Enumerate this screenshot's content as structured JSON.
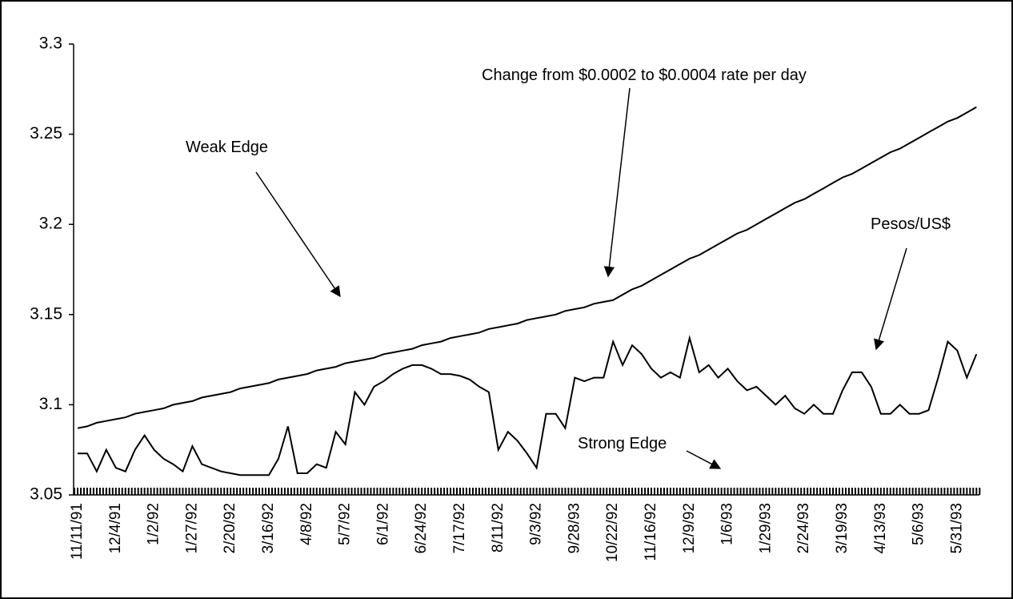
{
  "chart_data": {
    "type": "line",
    "categories": [
      "11/11/91",
      null,
      null,
      null,
      "12/4/91",
      null,
      null,
      null,
      "1/2/92",
      null,
      null,
      null,
      "1/27/92",
      null,
      null,
      null,
      "2/20/92",
      null,
      null,
      null,
      "3/16/92",
      null,
      null,
      null,
      "4/8/92",
      null,
      null,
      null,
      "5/7/92",
      null,
      null,
      null,
      "6/1/92",
      null,
      null,
      null,
      "6/24/92",
      null,
      null,
      null,
      "7/17/92",
      null,
      null,
      null,
      "8/11/92",
      null,
      null,
      null,
      "9/3/92",
      null,
      null,
      null,
      "9/28/93",
      null,
      null,
      null,
      "10/22/92",
      null,
      null,
      null,
      "11/16/92",
      null,
      null,
      null,
      "12/9/92",
      null,
      null,
      null,
      "1/6/93",
      null,
      null,
      null,
      "1/29/93",
      null,
      null,
      null,
      "2/24/93",
      null,
      null,
      null,
      "3/19/93",
      null,
      null,
      null,
      "4/13/93",
      null,
      null,
      null,
      "5/6/93",
      null,
      null,
      null,
      "5/31/93",
      null,
      null
    ],
    "series": [
      {
        "color": "#000000",
        "values": [
          3.087,
          3.088,
          3.09,
          3.091,
          3.092,
          3.093,
          3.095,
          3.096,
          3.097,
          3.098,
          3.1,
          3.101,
          3.102,
          3.104,
          3.105,
          3.106,
          3.107,
          3.109,
          3.11,
          3.111,
          3.112,
          3.114,
          3.115,
          3.116,
          3.117,
          3.119,
          3.12,
          3.121,
          3.123,
          3.124,
          3.125,
          3.126,
          3.128,
          3.129,
          3.13,
          3.131,
          3.133,
          3.134,
          3.135,
          3.137,
          3.138,
          3.139,
          3.14,
          3.142,
          3.143,
          3.144,
          3.145,
          3.147,
          3.148,
          3.149,
          3.15,
          3.152,
          3.153,
          3.154,
          3.156,
          3.157,
          3.158,
          3.161,
          3.164,
          3.166,
          3.169,
          3.172,
          3.175,
          3.178,
          3.181,
          3.183,
          3.186,
          3.189,
          3.192,
          3.195,
          3.197,
          3.2,
          3.203,
          3.206,
          3.209,
          3.212,
          3.214,
          3.217,
          3.22,
          3.223,
          3.226,
          3.228,
          3.231,
          3.234,
          3.237,
          3.24,
          3.242,
          3.245,
          3.248,
          3.251,
          3.254,
          3.257,
          3.259,
          3.262,
          3.265
        ]
      },
      {
        "color": "#000000",
        "values": [
          3.073,
          3.073,
          3.063,
          3.075,
          3.065,
          3.063,
          3.075,
          3.083,
          3.075,
          3.07,
          3.067,
          3.063,
          3.077,
          3.067,
          3.065,
          3.063,
          3.062,
          3.061,
          3.061,
          3.061,
          3.061,
          3.07,
          3.088,
          3.062,
          3.062,
          3.067,
          3.065,
          3.085,
          3.078,
          3.107,
          3.1,
          3.11,
          3.113,
          3.117,
          3.12,
          3.122,
          3.122,
          3.12,
          3.117,
          3.117,
          3.116,
          3.114,
          3.11,
          3.107,
          3.075,
          3.085,
          3.08,
          3.073,
          3.065,
          3.095,
          3.095,
          3.087,
          3.115,
          3.113,
          3.115,
          3.115,
          3.135,
          3.122,
          3.133,
          3.128,
          3.12,
          3.115,
          3.118,
          3.115,
          3.137,
          3.118,
          3.122,
          3.115,
          3.12,
          3.113,
          3.108,
          3.11,
          3.105,
          3.1,
          3.105,
          3.098,
          3.095,
          3.1,
          3.095,
          3.095,
          3.108,
          3.118,
          3.118,
          3.11,
          3.095,
          3.095,
          3.1,
          3.095,
          3.095,
          3.097,
          3.115,
          3.135,
          3.13,
          3.115,
          3.128
        ]
      }
    ],
    "ylim": [
      3.05,
      3.3
    ],
    "yticks": [
      3.05,
      3.1,
      3.15,
      3.2,
      3.25,
      3.3
    ],
    "grid": false,
    "annotations": [
      {
        "text": "Weak Edge"
      },
      {
        "text": "Change from $0.0002 to $0.0004 rate per day"
      },
      {
        "text": "Pesos/US$"
      },
      {
        "text": "Strong Edge"
      }
    ]
  }
}
